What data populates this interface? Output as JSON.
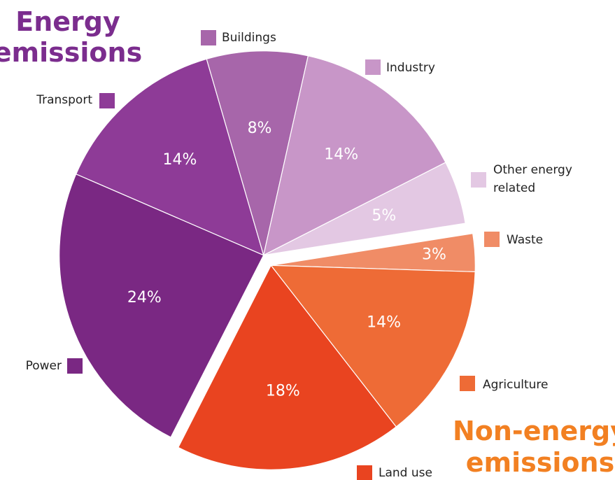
{
  "chart_data": {
    "type": "pie",
    "categories": [
      "Power",
      "Transport",
      "Buildings",
      "Industry",
      "Other energy related",
      "Waste",
      "Agriculture",
      "Land use"
    ],
    "values": [
      24,
      14,
      8,
      14,
      5,
      3,
      14,
      18
    ],
    "value_labels": [
      "24%",
      "14%",
      "8%",
      "14%",
      "5%",
      "3%",
      "14%",
      "18%"
    ],
    "colors": [
      "#7a2883",
      "#8e3b97",
      "#a766aa",
      "#c896c8",
      "#e3c8e3",
      "#f08c66",
      "#ee6b36",
      "#e94420"
    ],
    "groups": [
      {
        "name": "Energy emissions",
        "color": "#7b2d8e"
      },
      {
        "name": "Non-energy emissions",
        "color": "#f28022"
      }
    ]
  }
}
